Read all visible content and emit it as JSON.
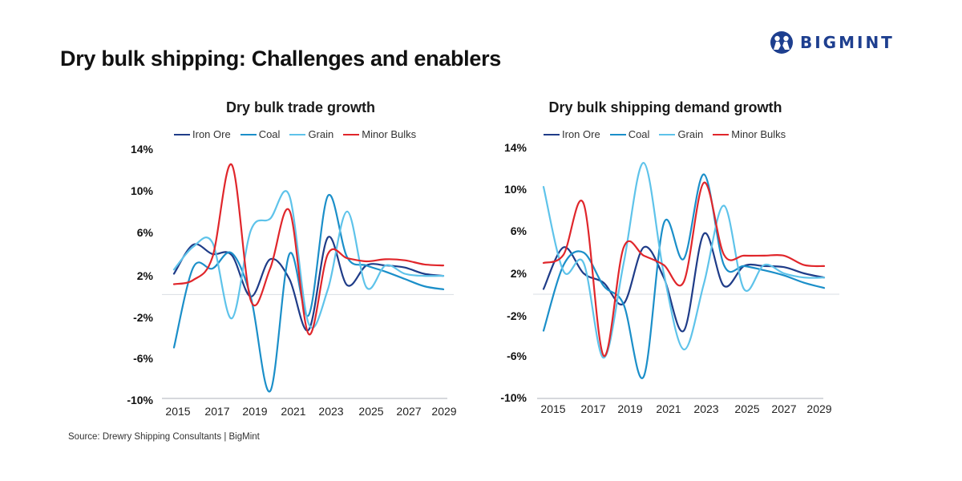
{
  "page": {
    "title": "Dry bulk shipping: Challenges and enablers",
    "logo_text": "BIGMINT",
    "source": "Source: Drewry Shipping Consultants | BigMint",
    "colors": {
      "iron_ore": "#1f3c88",
      "coal": "#1b8fc9",
      "grain": "#5ec3ea",
      "minor_bulks": "#e0262b",
      "brand": "#1e3f8f",
      "gridline": "#d9dde3"
    }
  },
  "chart_data": [
    {
      "type": "line",
      "title": "Dry bulk trade growth",
      "xlabel": "",
      "ylabel": "",
      "x": [
        2015,
        2016,
        2017,
        2018,
        2019,
        2020,
        2021,
        2022,
        2023,
        2024,
        2025,
        2026,
        2027,
        2028,
        2029
      ],
      "xticks": [
        "2015",
        "2017",
        "2019",
        "2021",
        "2023",
        "2025",
        "2027",
        "2029"
      ],
      "yticks": [
        "14%",
        "10%",
        "6%",
        "2%",
        "-2%",
        "-6%",
        "-10%"
      ],
      "ytick_values": [
        14,
        10,
        6,
        2,
        -2,
        -6,
        -10
      ],
      "ylim": [
        -10,
        14
      ],
      "legend": "top",
      "grid": false,
      "series": [
        {
          "name": "Iron Ore",
          "key": "iron_ore",
          "values": [
            2.0,
            4.8,
            3.9,
            3.8,
            -0.2,
            3.4,
            1.5,
            -3.4,
            5.5,
            0.9,
            2.8,
            2.8,
            2.6,
            2.0,
            1.8
          ]
        },
        {
          "name": "Coal",
          "key": "coal",
          "values": [
            -5.1,
            2.6,
            2.5,
            4.0,
            -0.3,
            -9.3,
            3.9,
            -2.0,
            9.5,
            3.6,
            2.8,
            2.2,
            1.5,
            0.8,
            0.5
          ]
        },
        {
          "name": "Grain",
          "key": "grain",
          "values": [
            2.4,
            4.6,
            5.0,
            -2.3,
            6.2,
            7.3,
            9.5,
            -2.8,
            0.5,
            8.0,
            0.7,
            2.8,
            2.0,
            1.8,
            1.8
          ]
        },
        {
          "name": "Minor Bulks",
          "key": "minor_bulks",
          "values": [
            1.0,
            1.4,
            3.6,
            12.5,
            -0.6,
            2.5,
            8.1,
            -3.8,
            3.9,
            3.5,
            3.2,
            3.4,
            3.3,
            2.9,
            2.8
          ]
        }
      ]
    },
    {
      "type": "line",
      "title": "Dry bulk shipping demand growth",
      "xlabel": "",
      "ylabel": "",
      "x": [
        2015,
        2016,
        2017,
        2018,
        2019,
        2020,
        2021,
        2022,
        2023,
        2024,
        2025,
        2026,
        2027,
        2028,
        2029
      ],
      "xticks": [
        "2015",
        "2017",
        "2019",
        "2021",
        "2023",
        "2025",
        "2027",
        "2029"
      ],
      "yticks": [
        "14%",
        "10%",
        "6%",
        "2%",
        "-2%",
        "-6%",
        "-10%"
      ],
      "ytick_values": [
        14,
        10,
        6,
        2,
        -2,
        -6,
        -10
      ],
      "ylim": [
        -10,
        14
      ],
      "legend": "top",
      "grid": false,
      "series": [
        {
          "name": "Iron Ore",
          "key": "iron_ore",
          "values": [
            0.5,
            4.5,
            2.0,
            1.1,
            -0.9,
            4.5,
            1.6,
            -3.5,
            5.8,
            0.8,
            2.7,
            2.7,
            2.6,
            2.0,
            1.6
          ]
        },
        {
          "name": "Coal",
          "key": "coal",
          "values": [
            -3.5,
            2.8,
            4.0,
            0.8,
            -1.0,
            -7.9,
            6.8,
            3.4,
            11.5,
            2.8,
            2.7,
            2.3,
            1.8,
            1.1,
            0.6
          ]
        },
        {
          "name": "Grain",
          "key": "grain",
          "values": [
            10.3,
            2.2,
            3.0,
            -6.1,
            3.0,
            12.6,
            2.0,
            -5.3,
            1.0,
            8.5,
            0.5,
            2.8,
            2.0,
            1.6,
            1.6
          ]
        },
        {
          "name": "Minor Bulks",
          "key": "minor_bulks",
          "values": [
            3.0,
            3.8,
            8.7,
            -5.9,
            4.5,
            3.7,
            2.8,
            1.2,
            10.7,
            3.8,
            3.7,
            3.7,
            3.7,
            2.8,
            2.7
          ]
        }
      ]
    }
  ]
}
